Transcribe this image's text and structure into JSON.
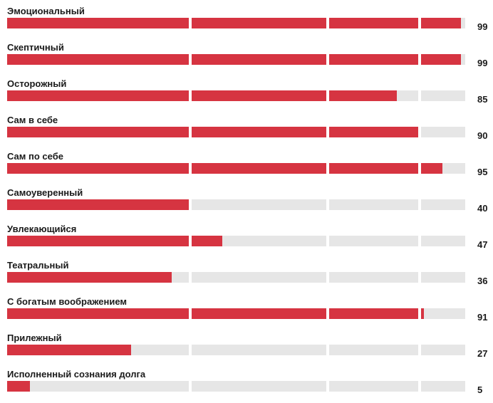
{
  "colors": {
    "fill": "#d63441",
    "track": "#e6e6e6",
    "text": "#1a1a1a"
  },
  "chart_data": {
    "type": "bar",
    "orientation": "horizontal",
    "scale_max": 100,
    "categories": [
      "Эмоциональный",
      "Скептичный",
      "Осторожный",
      "Сам в себе",
      "Сам по себе",
      "Самоуверенный",
      "Увлекающийся",
      "Театральный",
      "С богатым воображением",
      "Прилежный",
      "Исполненный сознания долга"
    ],
    "values": [
      99,
      99,
      85,
      90,
      95,
      40,
      47,
      36,
      91,
      27,
      5
    ]
  }
}
